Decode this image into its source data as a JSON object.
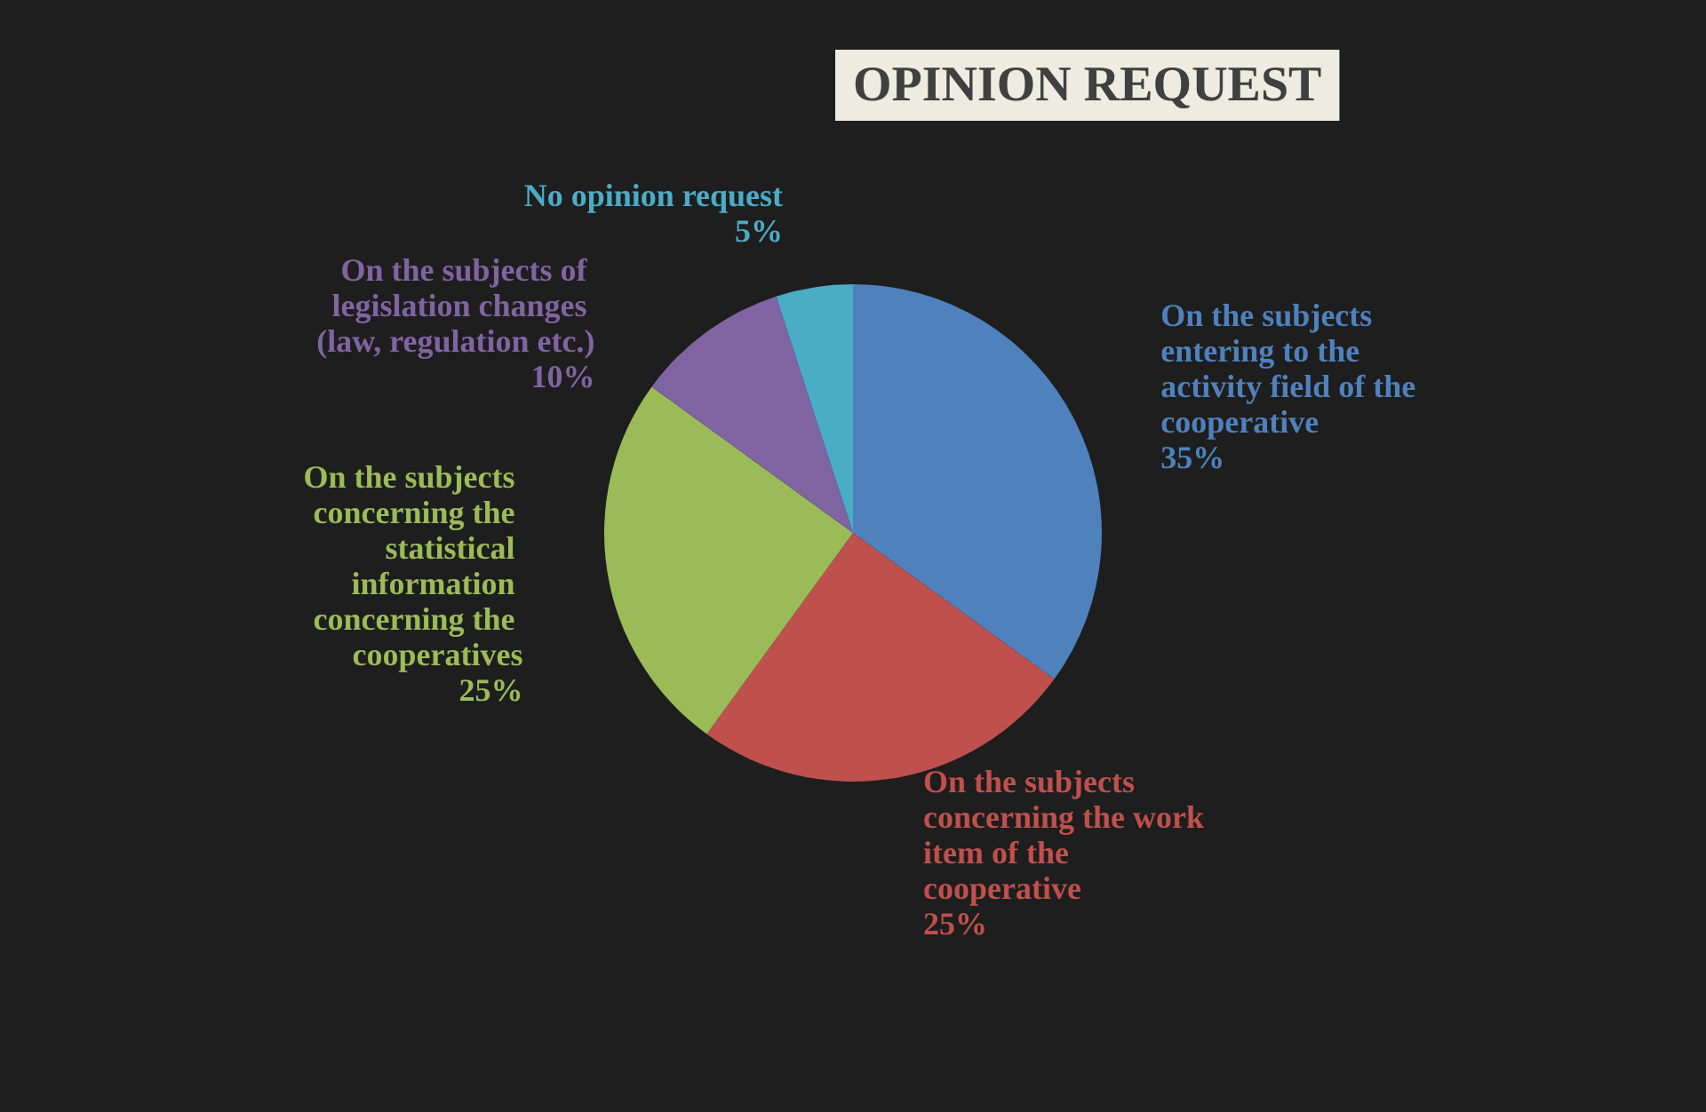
{
  "chart_data": {
    "type": "pie",
    "title": "OPINION REQUEST",
    "categories": [
      "On the subjects entering to the activity field of the cooperative",
      "On the subjects concerning the work item of the cooperative",
      "On the subjects concerning the statistical information concerning the cooperatives",
      "On the subjects of legislation changes (law, regulation etc.)",
      "No opinion request"
    ],
    "values": [
      35,
      25,
      25,
      10,
      5
    ],
    "colors": [
      "#4f81bd",
      "#c0504d",
      "#9bbb59",
      "#8064a2",
      "#4bacc6"
    ],
    "value_labels": [
      "35%",
      "25%",
      "25%",
      "10%",
      "5%"
    ],
    "legend": false
  }
}
